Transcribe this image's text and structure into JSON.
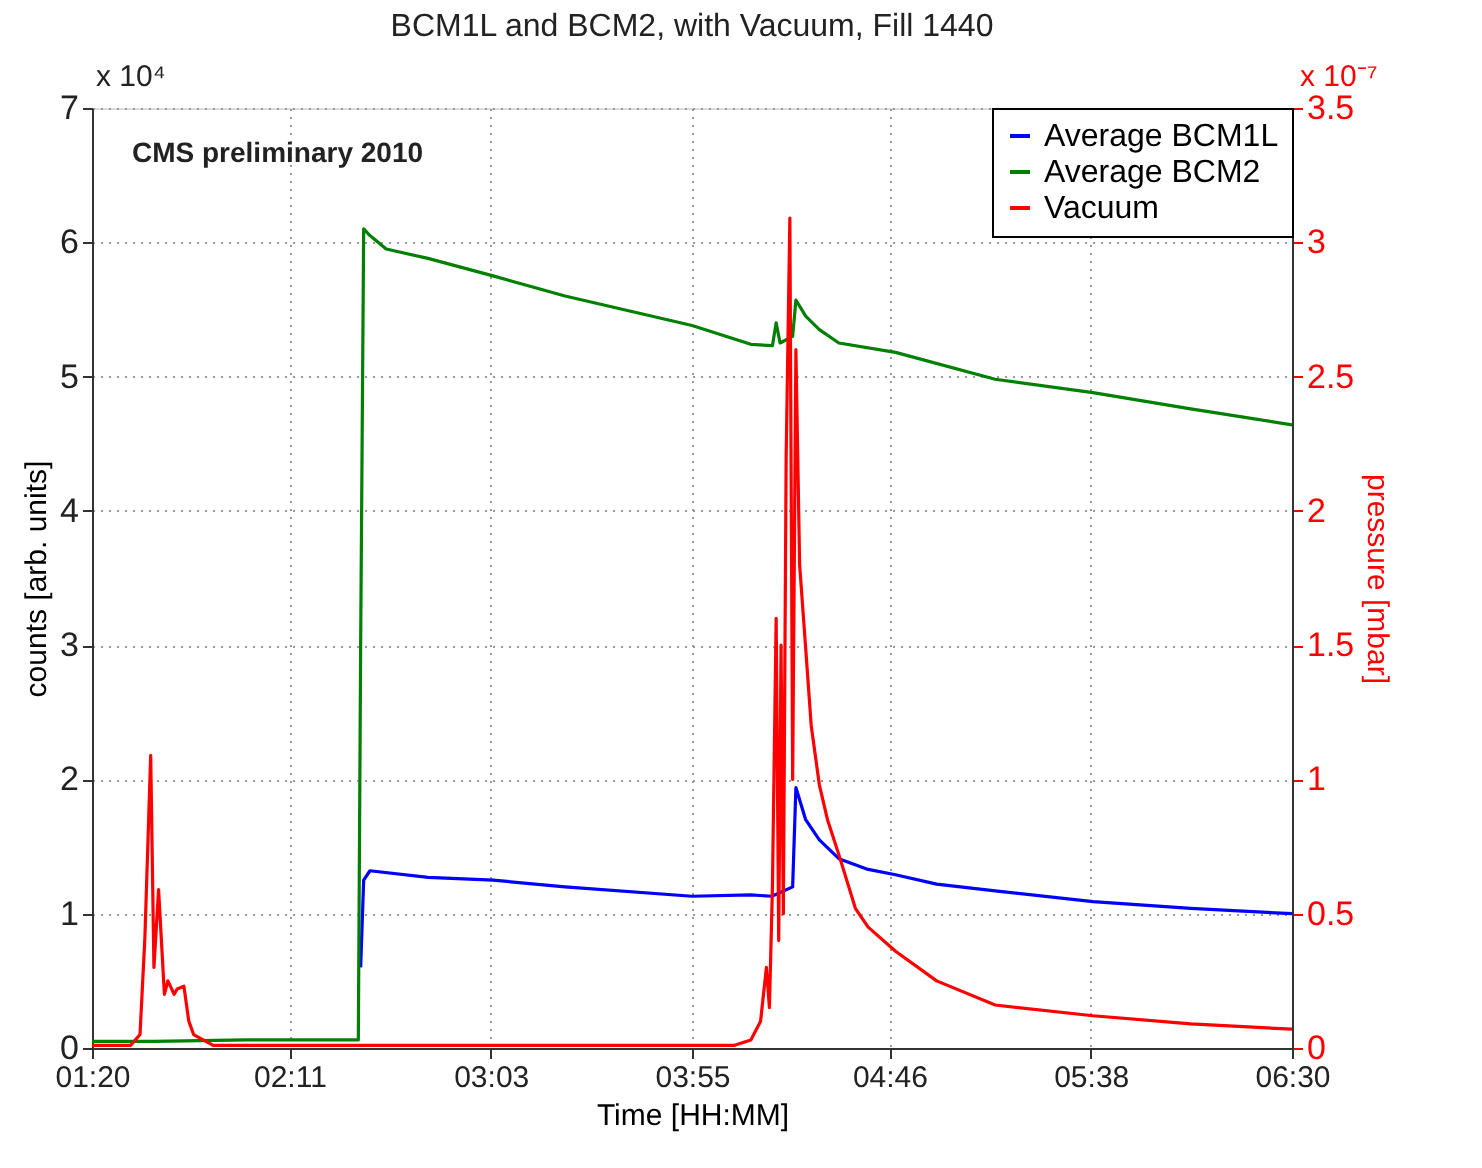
{
  "chart_data": {
    "type": "line",
    "title": "BCM1L and BCM2, with Vacuum, Fill 1440",
    "xlabel": "Time [HH:MM]",
    "ylabel": "counts [arb. units]",
    "y2label": "pressure [mbar]",
    "annotations": [
      "CMS preliminary 2010",
      "x 10⁴",
      "x 10⁻⁷"
    ],
    "xlim": [
      1.3333,
      6.5
    ],
    "xticks": [
      {
        "value": 1.3333,
        "label": "01:20"
      },
      {
        "value": 2.1833,
        "label": "02:11"
      },
      {
        "value": 3.05,
        "label": "03:03"
      },
      {
        "value": 3.9167,
        "label": "03:55"
      },
      {
        "value": 4.7667,
        "label": "04:46"
      },
      {
        "value": 5.6333,
        "label": "05:38"
      },
      {
        "value": 6.5,
        "label": "06:30"
      }
    ],
    "ylim": [
      0,
      7
    ],
    "yticks": [
      0,
      1,
      2,
      3,
      4,
      5,
      6,
      7
    ],
    "y2lim": [
      0,
      3.5
    ],
    "y2ticks": [
      0,
      0.5,
      1,
      1.5,
      2,
      2.5,
      3,
      3.5
    ],
    "grid": true,
    "legend": "top right",
    "line_style": "solid",
    "marker": "none",
    "series": [
      {
        "name": "Average BCM1L",
        "color": "#0000ff",
        "x": [
          2.49,
          2.503,
          2.53,
          2.78,
          3.06,
          3.37,
          3.917,
          4.17,
          4.26,
          4.35,
          4.364,
          4.406,
          4.465,
          4.549,
          4.675,
          4.793,
          4.97,
          5.222,
          5.643,
          6.064,
          6.5
        ],
        "values": [
          0.6,
          1.25,
          1.32,
          1.27,
          1.25,
          1.2,
          1.13,
          1.14,
          1.13,
          1.2,
          1.94,
          1.7,
          1.55,
          1.41,
          1.33,
          1.29,
          1.22,
          1.17,
          1.09,
          1.04,
          1.0
        ]
      },
      {
        "name": "Average BCM2",
        "color": "#008000",
        "x": [
          1.3333,
          1.6,
          2.0,
          2.48,
          2.49,
          2.503,
          2.53,
          2.6,
          2.78,
          3.06,
          3.37,
          3.917,
          4.17,
          4.263,
          4.279,
          4.296,
          4.35,
          4.364,
          4.406,
          4.465,
          4.549,
          4.793,
          5.222,
          5.643,
          6.064,
          6.5
        ],
        "values": [
          0.05,
          0.05,
          0.06,
          0.06,
          3.0,
          6.1,
          6.05,
          5.95,
          5.88,
          5.75,
          5.6,
          5.38,
          5.24,
          5.23,
          5.4,
          5.25,
          5.3,
          5.57,
          5.45,
          5.35,
          5.25,
          5.18,
          4.98,
          4.88,
          4.76,
          4.64
        ],
        "axis": "y"
      },
      {
        "name": "Vacuum",
        "color": "#ff0000",
        "axis": "y2",
        "x": [
          1.3333,
          1.5,
          1.54,
          1.561,
          1.586,
          1.6,
          1.62,
          1.645,
          1.66,
          1.687,
          1.7,
          1.729,
          1.75,
          1.771,
          1.855,
          2.5,
          3.0,
          3.9,
          4.1,
          4.17,
          4.212,
          4.237,
          4.25,
          4.263,
          4.279,
          4.29,
          4.3,
          4.31,
          4.322,
          4.338,
          4.35,
          4.364,
          4.38,
          4.406,
          4.43,
          4.465,
          4.5,
          4.549,
          4.62,
          4.675,
          4.793,
          4.97,
          5.222,
          5.643,
          6.064,
          6.5
        ],
        "values": [
          0.01,
          0.01,
          0.05,
          0.41,
          1.09,
          0.3,
          0.59,
          0.2,
          0.25,
          0.2,
          0.22,
          0.23,
          0.1,
          0.05,
          0.01,
          0.01,
          0.01,
          0.01,
          0.01,
          0.03,
          0.1,
          0.3,
          0.15,
          0.6,
          1.6,
          0.4,
          1.5,
          0.5,
          2.2,
          3.09,
          1.0,
          2.6,
          1.8,
          1.49,
          1.2,
          0.98,
          0.85,
          0.72,
          0.52,
          0.45,
          0.36,
          0.25,
          0.16,
          0.12,
          0.09,
          0.07
        ]
      }
    ]
  }
}
